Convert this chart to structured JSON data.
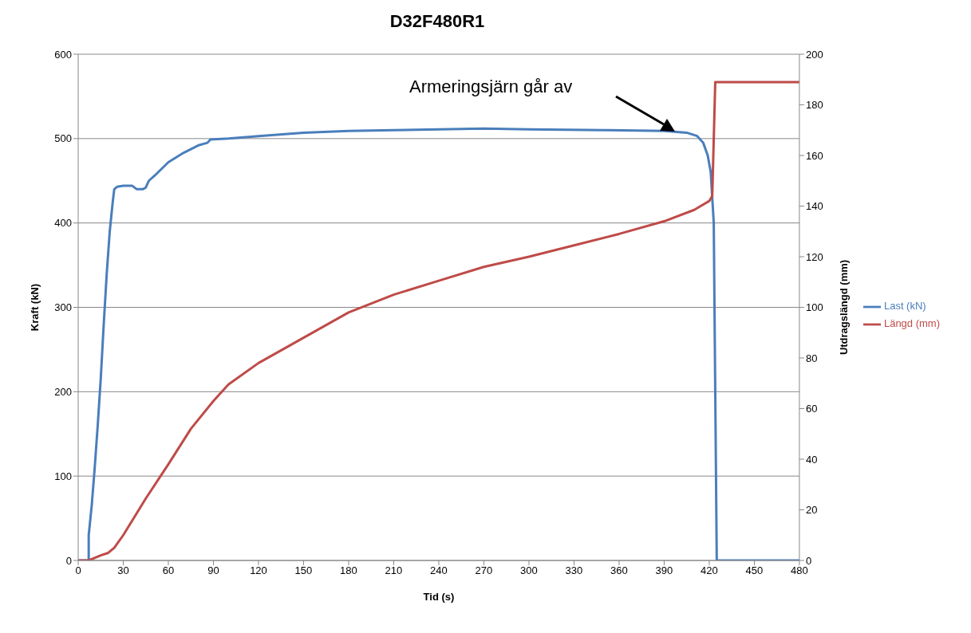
{
  "chart_data": {
    "type": "line",
    "title": "D32F480R1",
    "xlabel": "Tid (s)",
    "ylabel": "Kraft (kN)",
    "y2label": "Utdragslängd (mm)",
    "annotations": [
      "Armeringsjärn går av"
    ],
    "xlim": [
      0,
      480
    ],
    "xticks": [
      0,
      30,
      60,
      90,
      120,
      150,
      180,
      210,
      240,
      270,
      300,
      330,
      360,
      390,
      420,
      450,
      480
    ],
    "ylim": [
      0,
      600
    ],
    "yticks": [
      0,
      100,
      200,
      300,
      400,
      500,
      600
    ],
    "y2lim": [
      0,
      200
    ],
    "y2ticks": [
      0,
      20,
      40,
      60,
      80,
      100,
      120,
      140,
      160,
      180,
      200
    ],
    "grid": "y",
    "legend": "right",
    "marker": "none",
    "line_style": "solid",
    "series": [
      {
        "name": "Last (kN)",
        "color": "#4a7ebb",
        "x": [
          0,
          7,
          7,
          9,
          11,
          13,
          15,
          17,
          19,
          21,
          23,
          24,
          26,
          30,
          36,
          39,
          43,
          45,
          47,
          52,
          60,
          70,
          80,
          86,
          88,
          100,
          120,
          150,
          180,
          210,
          270,
          300,
          350,
          390,
          405,
          412,
          416,
          419,
          421,
          423,
          424,
          425,
          480
        ],
        "values": [
          0,
          0,
          30,
          65,
          110,
          160,
          215,
          280,
          340,
          390,
          425,
          440,
          443,
          444,
          444,
          440,
          440,
          442,
          450,
          458,
          472,
          483,
          492,
          495,
          499,
          500,
          503,
          507,
          509,
          510,
          512,
          511,
          510,
          509,
          507,
          503,
          495,
          480,
          460,
          400,
          200,
          0,
          0
        ]
      },
      {
        "name": "Längd (mm)",
        "color": "#be4b48",
        "axis": "y2",
        "x": [
          0,
          7,
          15,
          20,
          24,
          30,
          45,
          60,
          75,
          90,
          100,
          120,
          150,
          180,
          210,
          240,
          270,
          300,
          330,
          360,
          390,
          410,
          420,
          422,
          424,
          480
        ],
        "values": [
          0,
          0,
          2,
          3,
          5,
          10,
          24.5,
          38,
          52,
          63,
          69.5,
          78,
          88,
          98,
          105,
          110.5,
          116,
          120,
          124.5,
          129,
          134,
          138.5,
          142,
          144,
          189,
          189
        ]
      }
    ]
  }
}
